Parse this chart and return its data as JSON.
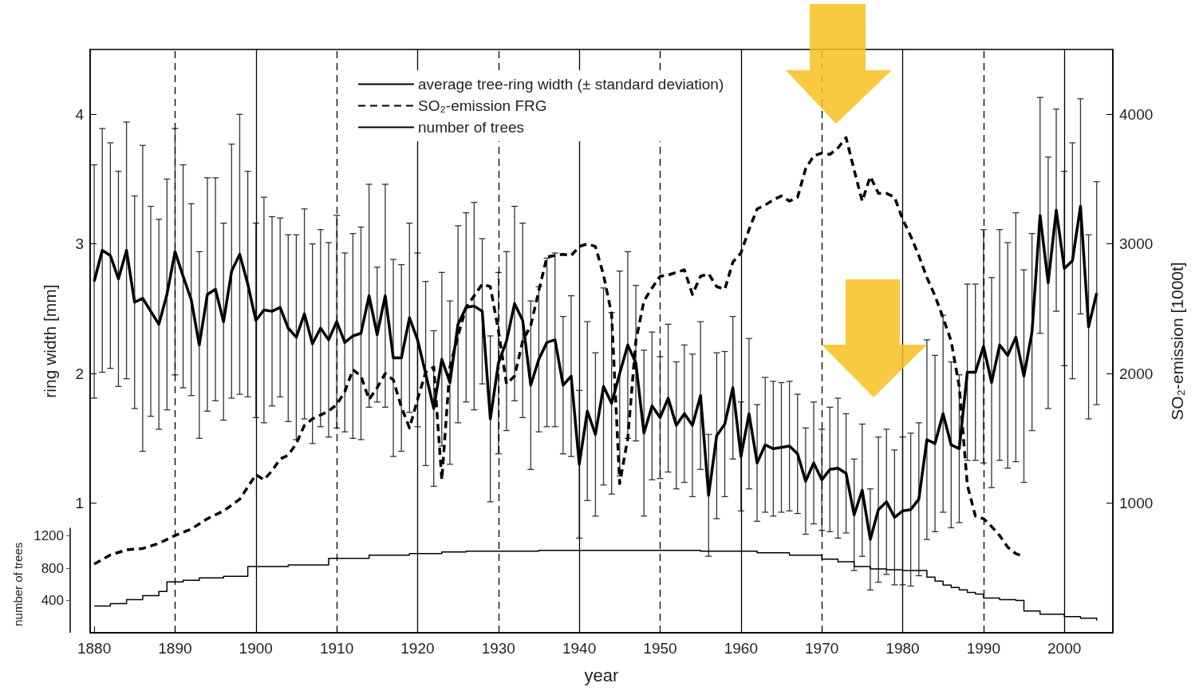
{
  "chart_data": {
    "type": "line",
    "xlabel": "year",
    "ylabel": "ring width [mm]",
    "y2label": "SO₂-emission [1000t]",
    "y3label": "number of trees",
    "xlim": [
      1879.5,
      2006
    ],
    "xticks": [
      1880,
      1890,
      1900,
      1910,
      1920,
      1930,
      1940,
      1950,
      1960,
      1970,
      1980,
      1990,
      2000
    ],
    "ylim": [
      0,
      4.5
    ],
    "yticks": [
      1,
      2,
      3,
      4
    ],
    "y2lim": [
      0,
      4500
    ],
    "y2ticks": [
      1000,
      2000,
      3000,
      4000
    ],
    "y3lim": [
      0,
      7220
    ],
    "y3ticks": [
      400,
      800,
      1200
    ],
    "legend": "top",
    "grid": false,
    "marker": "none",
    "ref_lines": [
      {
        "axis": "x",
        "value": 1890,
        "line_style": "dashed"
      },
      {
        "axis": "x",
        "value": 1900,
        "line_style": "solid"
      },
      {
        "axis": "x",
        "value": 1910,
        "line_style": "dashed"
      },
      {
        "axis": "x",
        "value": 1920,
        "line_style": "solid"
      },
      {
        "axis": "x",
        "value": 1930,
        "line_style": "dashed"
      },
      {
        "axis": "x",
        "value": 1940,
        "line_style": "solid"
      },
      {
        "axis": "x",
        "value": 1950,
        "line_style": "dashed"
      },
      {
        "axis": "x",
        "value": 1960,
        "line_style": "solid"
      },
      {
        "axis": "x",
        "value": 1970,
        "line_style": "dashed"
      },
      {
        "axis": "x",
        "value": 1980,
        "line_style": "solid"
      },
      {
        "axis": "x",
        "value": 1990,
        "line_style": "dashed"
      },
      {
        "axis": "x",
        "value": 2000,
        "line_style": "solid"
      }
    ],
    "series": [
      {
        "name": "average tree-ring width (± standard deviation)",
        "color": "#000000",
        "line_style": "solid",
        "x": [
          1880,
          1881,
          1882,
          1883,
          1884,
          1885,
          1886,
          1887,
          1888,
          1889,
          1890,
          1891,
          1892,
          1893,
          1894,
          1895,
          1896,
          1897,
          1898,
          1899,
          1900,
          1901,
          1902,
          1903,
          1904,
          1905,
          1906,
          1907,
          1908,
          1909,
          1910,
          1911,
          1912,
          1913,
          1914,
          1915,
          1916,
          1917,
          1918,
          1919,
          1920,
          1921,
          1922,
          1923,
          1924,
          1925,
          1926,
          1927,
          1928,
          1929,
          1930,
          1931,
          1932,
          1933,
          1934,
          1935,
          1936,
          1937,
          1938,
          1939,
          1940,
          1941,
          1942,
          1943,
          1944,
          1945,
          1946,
          1947,
          1948,
          1949,
          1950,
          1951,
          1952,
          1953,
          1954,
          1955,
          1956,
          1957,
          1958,
          1959,
          1960,
          1961,
          1962,
          1963,
          1964,
          1965,
          1966,
          1967,
          1968,
          1969,
          1970,
          1971,
          1972,
          1973,
          1974,
          1975,
          1976,
          1977,
          1978,
          1979,
          1980,
          1981,
          1982,
          1983,
          1984,
          1985,
          1986,
          1987,
          1988,
          1989,
          1990,
          1991,
          1992,
          1993,
          1994,
          1995,
          1996,
          1997,
          1998,
          1999,
          2000,
          2001,
          2002,
          2003,
          2004
        ],
        "values": [
          2.71,
          2.95,
          2.91,
          2.73,
          2.95,
          2.55,
          2.58,
          2.48,
          2.38,
          2.61,
          2.94,
          2.75,
          2.57,
          2.22,
          2.61,
          2.65,
          2.4,
          2.79,
          2.92,
          2.69,
          2.41,
          2.49,
          2.48,
          2.51,
          2.35,
          2.28,
          2.46,
          2.23,
          2.35,
          2.26,
          2.4,
          2.24,
          2.29,
          2.31,
          2.6,
          2.3,
          2.6,
          2.12,
          2.12,
          2.43,
          2.26,
          2.0,
          1.73,
          2.11,
          1.93,
          2.38,
          2.51,
          2.52,
          2.48,
          1.65,
          2.08,
          2.25,
          2.54,
          2.41,
          1.91,
          2.11,
          2.24,
          2.26,
          1.91,
          1.98,
          1.3,
          1.71,
          1.53,
          1.9,
          1.77,
          2.0,
          2.22,
          2.08,
          1.54,
          1.75,
          1.66,
          1.81,
          1.6,
          1.69,
          1.6,
          1.83,
          1.06,
          1.52,
          1.61,
          1.89,
          1.36,
          1.69,
          1.31,
          1.45,
          1.42,
          1.43,
          1.44,
          1.38,
          1.17,
          1.31,
          1.18,
          1.26,
          1.27,
          1.23,
          0.91,
          1.1,
          0.72,
          0.95,
          1.01,
          0.89,
          0.94,
          0.95,
          1.03,
          1.49,
          1.46,
          1.69,
          1.45,
          1.42,
          2.01,
          2.01,
          2.21,
          1.93,
          2.22,
          2.14,
          2.28,
          1.98,
          2.32,
          3.22,
          2.7,
          3.26,
          2.81,
          2.87,
          3.29,
          2.36,
          2.62
        ],
        "errors": [
          0.9,
          0.94,
          0.87,
          0.83,
          0.99,
          0.82,
          1.18,
          0.81,
          0.81,
          0.89,
          0.95,
          0.86,
          0.74,
          0.72,
          0.9,
          0.86,
          0.76,
          0.98,
          1.08,
          0.87,
          0.75,
          0.87,
          0.73,
          0.69,
          0.72,
          0.79,
          0.81,
          0.77,
          0.76,
          0.75,
          0.82,
          0.69,
          0.79,
          0.82,
          0.86,
          0.52,
          0.86,
          0.76,
          0.72,
          0.73,
          0.67,
          0.71,
          0.6,
          0.67,
          0.63,
          0.76,
          0.73,
          0.8,
          0.56,
          0.64,
          0.7,
          0.69,
          0.75,
          0.75,
          0.65,
          0.56,
          0.65,
          0.67,
          0.53,
          0.62,
          0.57,
          0.69,
          0.63,
          0.76,
          0.7,
          0.79,
          0.72,
          0.6,
          0.64,
          0.57,
          0.47,
          0.57,
          0.49,
          0.53,
          0.55,
          0.57,
          0.47,
          0.64,
          0.56,
          0.55,
          0.42,
          0.58,
          0.45,
          0.52,
          0.52,
          0.5,
          0.5,
          0.46,
          0.41,
          0.47,
          0.39,
          0.48,
          0.54,
          0.46,
          0.43,
          0.51,
          0.39,
          0.56,
          0.56,
          0.52,
          0.57,
          0.59,
          0.59,
          0.77,
          0.68,
          0.76,
          0.64,
          0.57,
          0.68,
          0.68,
          0.9,
          0.81,
          0.89,
          0.87,
          0.96,
          0.82,
          0.76,
          0.91,
          0.97,
          0.78,
          0.75,
          0.91,
          0.83,
          0.71,
          0.86
        ]
      },
      {
        "name": "SO₂-emission FRG",
        "color": "#000000",
        "axis": "y2",
        "line_style": "dashed",
        "x": [
          1880,
          1882,
          1884,
          1886,
          1888,
          1890,
          1892,
          1894,
          1896,
          1898,
          1900,
          1901,
          1902,
          1903,
          1904,
          1905,
          1906,
          1907,
          1908,
          1909,
          1910,
          1911,
          1912,
          1913,
          1914,
          1915,
          1916,
          1917,
          1918,
          1919,
          1920,
          1921,
          1922,
          1923,
          1924,
          1925,
          1926,
          1927,
          1928,
          1929,
          1930,
          1931,
          1932,
          1933,
          1934,
          1935,
          1936,
          1937,
          1938,
          1939,
          1940,
          1941,
          1942,
          1943,
          1944,
          1945,
          1946,
          1947,
          1948,
          1949,
          1950,
          1951,
          1952,
          1953,
          1954,
          1955,
          1956,
          1957,
          1958,
          1959,
          1960,
          1961,
          1962,
          1963,
          1964,
          1965,
          1966,
          1967,
          1968,
          1969,
          1970,
          1971,
          1972,
          1973,
          1974,
          1975,
          1976,
          1977,
          1978,
          1979,
          1980,
          1981,
          1982,
          1983,
          1984,
          1985,
          1986,
          1987,
          1988,
          1989,
          1990,
          1991,
          1992,
          1993,
          1994,
          1995
        ],
        "values": [
          530,
          600,
          640,
          650,
          690,
          750,
          800,
          880,
          940,
          1030,
          1220,
          1180,
          1250,
          1340,
          1370,
          1460,
          1600,
          1650,
          1680,
          1710,
          1760,
          1860,
          2030,
          1980,
          1800,
          1890,
          2000,
          1950,
          1740,
          1580,
          1800,
          2010,
          2050,
          1180,
          2050,
          2290,
          2510,
          2600,
          2690,
          2670,
          2330,
          1920,
          1980,
          2250,
          2370,
          2640,
          2900,
          2910,
          2920,
          2910,
          2980,
          3000,
          2980,
          2760,
          2460,
          1150,
          1500,
          2250,
          2560,
          2660,
          2750,
          2760,
          2780,
          2800,
          2610,
          2750,
          2770,
          2670,
          2650,
          2860,
          2930,
          3110,
          3270,
          3300,
          3340,
          3370,
          3330,
          3360,
          3580,
          3680,
          3700,
          3690,
          3740,
          3820,
          3570,
          3330,
          3520,
          3390,
          3390,
          3360,
          3190,
          3060,
          2910,
          2740,
          2600,
          2430,
          2250,
          1900,
          1140,
          900,
          880,
          820,
          750,
          660,
          610,
          590
        ]
      },
      {
        "name": "number of trees",
        "color": "#000000",
        "type": "step",
        "axis": "y3",
        "line_style": "solid",
        "x": [
          1880,
          1882,
          1884,
          1886,
          1888,
          1889,
          1891,
          1893,
          1896,
          1899,
          1904,
          1909,
          1914,
          1919,
          1923,
          1926,
          1935,
          1955,
          1962,
          1966,
          1970,
          1972,
          1974,
          1976,
          1978,
          1980,
          1983,
          1984,
          1985,
          1986,
          1987,
          1988,
          1989,
          1990,
          1992,
          1994,
          1995,
          1997,
          2000,
          2002,
          2004
        ],
        "values": [
          330,
          360,
          410,
          460,
          510,
          630,
          650,
          680,
          700,
          820,
          840,
          920,
          960,
          980,
          1000,
          1010,
          1020,
          1010,
          990,
          960,
          910,
          880,
          820,
          790,
          780,
          770,
          690,
          640,
          590,
          560,
          530,
          500,
          480,
          430,
          410,
          400,
          270,
          230,
          200,
          180,
          150
        ]
      }
    ]
  }
}
